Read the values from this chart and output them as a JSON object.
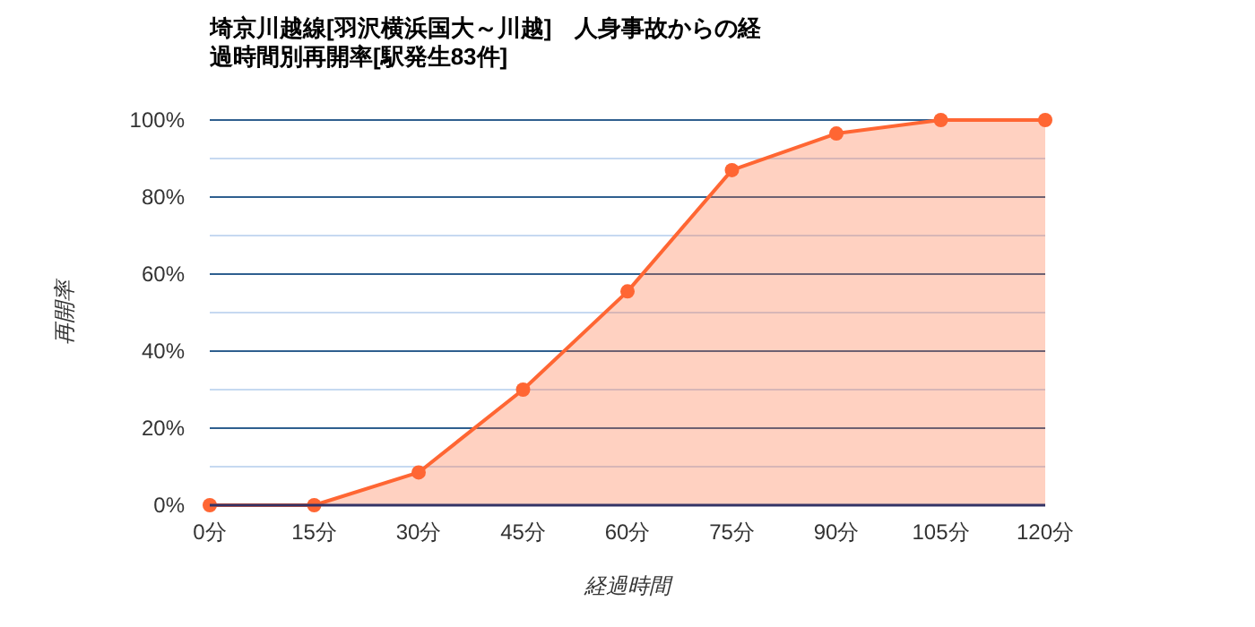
{
  "chart_data": {
    "type": "area",
    "title": "埼京川越線[羽沢横浜国大～川越]　人身事故からの経過時間別再開率[駅発生83件]",
    "xlabel": "経過時間",
    "ylabel": "再開率",
    "categories": [
      "0分",
      "15分",
      "30分",
      "45分",
      "60分",
      "75分",
      "90分",
      "105分",
      "120分"
    ],
    "series": [
      {
        "color": "#ff6633",
        "values": [
          0,
          0,
          8.5,
          30,
          55.5,
          87,
          96.5,
          100,
          100
        ]
      }
    ],
    "ylim": [
      0,
      100
    ],
    "yticks": [
      {
        "value": 0,
        "label": "0%"
      },
      {
        "value": 10,
        "label": null
      },
      {
        "value": 20,
        "label": "20%"
      },
      {
        "value": 30,
        "label": null
      },
      {
        "value": 40,
        "label": "40%"
      },
      {
        "value": 50,
        "label": null
      },
      {
        "value": 60,
        "label": "60%"
      },
      {
        "value": 70,
        "label": null
      },
      {
        "value": 80,
        "label": "80%"
      },
      {
        "value": 90,
        "label": null
      },
      {
        "value": 100,
        "label": "100%"
      }
    ],
    "grid": "y",
    "marker": "circle"
  }
}
